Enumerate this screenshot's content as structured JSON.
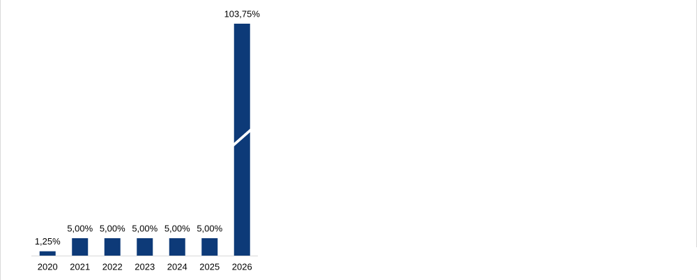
{
  "chart_data": {
    "type": "bar",
    "categories": [
      "2020",
      "2021",
      "2022",
      "2023",
      "2024",
      "2025",
      "2026"
    ],
    "values": [
      1.25,
      5,
      5,
      5,
      5,
      5,
      103.75
    ],
    "value_labels": [
      "1,25%",
      "5,00%",
      "5,00%",
      "5,00%",
      "5,00%",
      "5,00%",
      "103,75%"
    ],
    "color": "#0d3a78"
  }
}
